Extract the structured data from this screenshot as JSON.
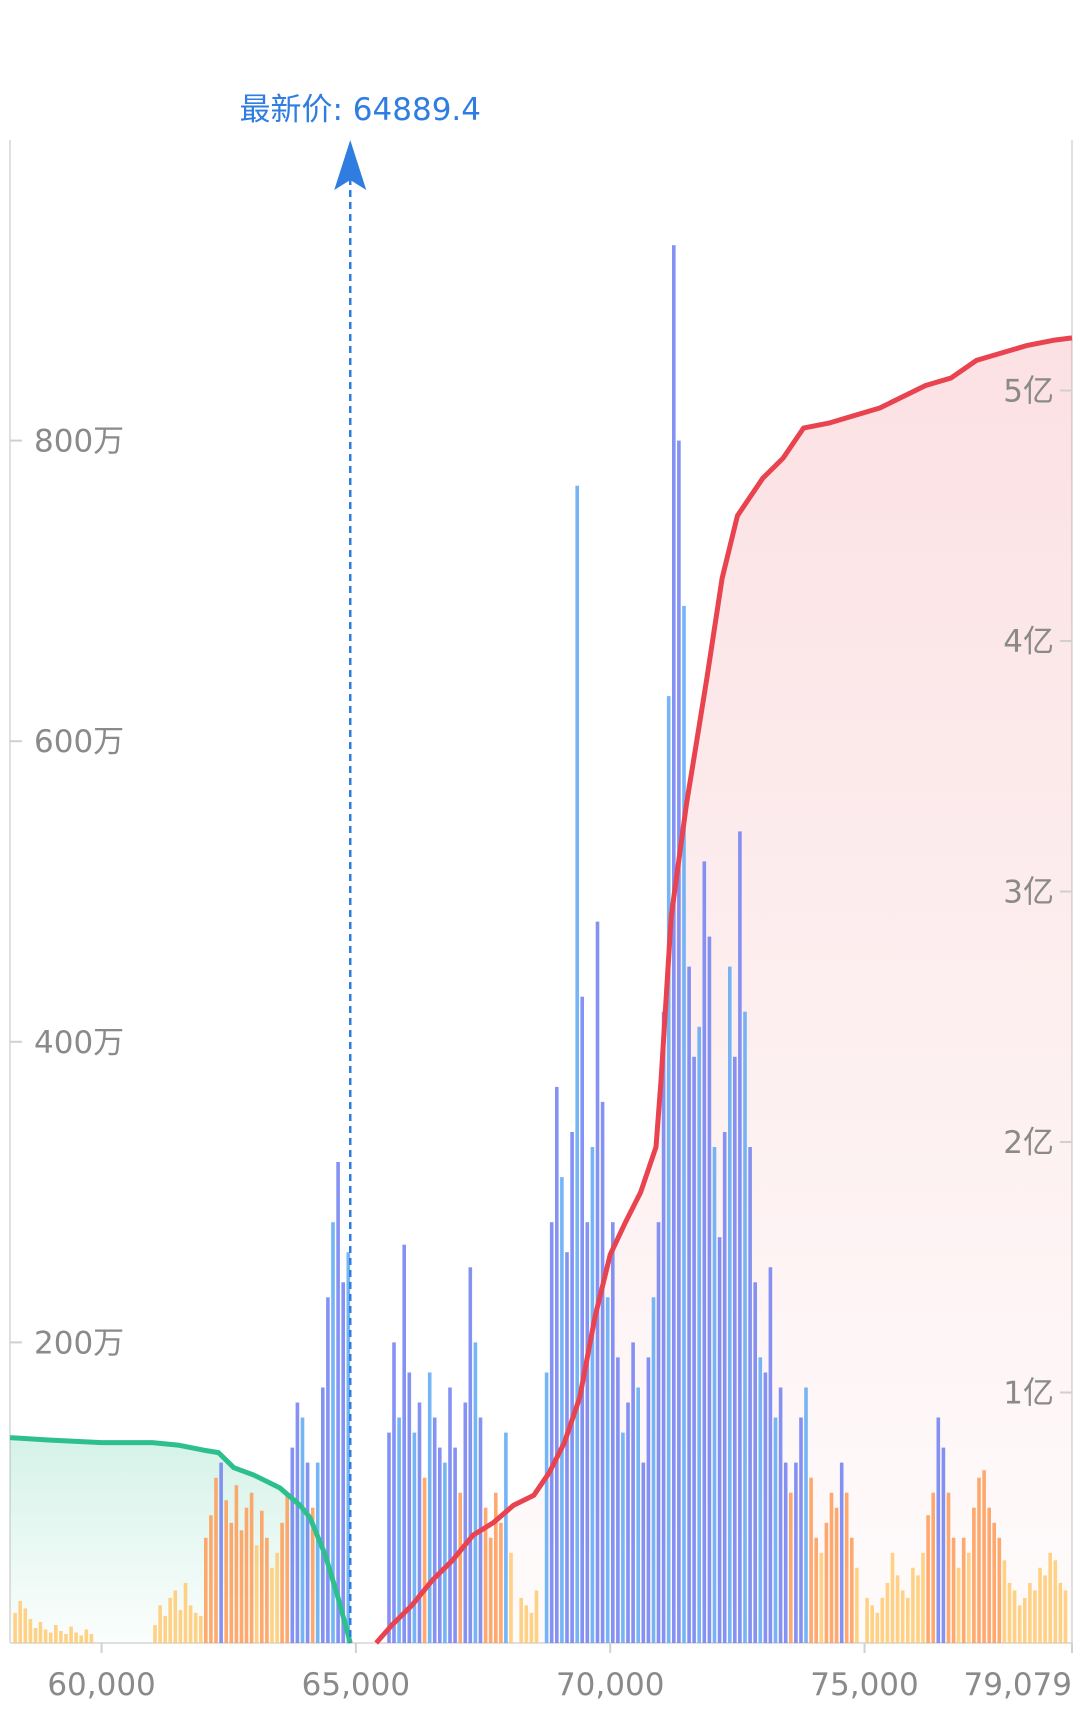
{
  "chart_data": {
    "type": "bar",
    "title": "",
    "last_price": {
      "label": "最新价: 64889.4",
      "value": 64889.4
    },
    "x_axis": {
      "ticks": [
        {
          "value": 60000,
          "label": "60,000"
        },
        {
          "value": 65000,
          "label": "65,000"
        },
        {
          "value": 70000,
          "label": "70,000"
        },
        {
          "value": 75000,
          "label": "75,000"
        },
        {
          "value": 79079,
          "label": "79,079"
        }
      ],
      "range": [
        58200,
        79079
      ]
    },
    "y_left": {
      "ticks": [
        {
          "value": 2000000,
          "label": "200万"
        },
        {
          "value": 4000000,
          "label": "400万"
        },
        {
          "value": 6000000,
          "label": "600万"
        },
        {
          "value": 8000000,
          "label": "800万"
        }
      ],
      "range": [
        0,
        10000000
      ]
    },
    "y_right": {
      "ticks": [
        {
          "value": 100000000,
          "label": "1亿"
        },
        {
          "value": 200000000,
          "label": "2亿"
        },
        {
          "value": 300000000,
          "label": "3亿"
        },
        {
          "value": 400000000,
          "label": "4亿"
        },
        {
          "value": 500000000,
          "label": "5亿"
        }
      ],
      "range": [
        0,
        600000000
      ]
    },
    "grid": false,
    "legend": "none",
    "colors": {
      "low": "#ffc970",
      "mid": "#ff9a55",
      "high": "#6f7ff2",
      "alt": "#5da8f5",
      "cum_bid": "#2ec08c",
      "cum_ask": "#e8434f",
      "price_line": "#2f7de1"
    },
    "bars": [
      {
        "x": 58300,
        "v": 200000
      },
      {
        "x": 58400,
        "v": 280000
      },
      {
        "x": 58500,
        "v": 230000
      },
      {
        "x": 58600,
        "v": 160000
      },
      {
        "x": 58700,
        "v": 100000
      },
      {
        "x": 58800,
        "v": 140000
      },
      {
        "x": 58900,
        "v": 90000
      },
      {
        "x": 59000,
        "v": 70000
      },
      {
        "x": 59100,
        "v": 120000
      },
      {
        "x": 59200,
        "v": 80000
      },
      {
        "x": 59300,
        "v": 60000
      },
      {
        "x": 59400,
        "v": 110000
      },
      {
        "x": 59500,
        "v": 70000
      },
      {
        "x": 59600,
        "v": 50000
      },
      {
        "x": 59700,
        "v": 90000
      },
      {
        "x": 59800,
        "v": 60000
      },
      {
        "x": 61050,
        "v": 120000
      },
      {
        "x": 61150,
        "v": 250000
      },
      {
        "x": 61250,
        "v": 180000
      },
      {
        "x": 61350,
        "v": 300000
      },
      {
        "x": 61450,
        "v": 350000
      },
      {
        "x": 61550,
        "v": 220000
      },
      {
        "x": 61650,
        "v": 400000
      },
      {
        "x": 61750,
        "v": 250000
      },
      {
        "x": 61850,
        "v": 200000
      },
      {
        "x": 61950,
        "v": 180000
      },
      {
        "x": 62050,
        "v": 700000
      },
      {
        "x": 62150,
        "v": 850000
      },
      {
        "x": 62250,
        "v": 1100000
      },
      {
        "x": 62350,
        "v": 1200000
      },
      {
        "x": 62450,
        "v": 950000
      },
      {
        "x": 62550,
        "v": 800000
      },
      {
        "x": 62650,
        "v": 1050000
      },
      {
        "x": 62750,
        "v": 750000
      },
      {
        "x": 62850,
        "v": 900000
      },
      {
        "x": 62950,
        "v": 1000000
      },
      {
        "x": 63050,
        "v": 650000
      },
      {
        "x": 63150,
        "v": 880000
      },
      {
        "x": 63250,
        "v": 700000
      },
      {
        "x": 63350,
        "v": 500000
      },
      {
        "x": 63450,
        "v": 600000
      },
      {
        "x": 63550,
        "v": 800000
      },
      {
        "x": 63650,
        "v": 1000000
      },
      {
        "x": 63750,
        "v": 1300000
      },
      {
        "x": 63850,
        "v": 1600000
      },
      {
        "x": 63950,
        "v": 1500000
      },
      {
        "x": 64050,
        "v": 1200000
      },
      {
        "x": 64150,
        "v": 900000
      },
      {
        "x": 64250,
        "v": 1200000
      },
      {
        "x": 64350,
        "v": 1700000
      },
      {
        "x": 64450,
        "v": 2300000
      },
      {
        "x": 64550,
        "v": 2800000
      },
      {
        "x": 64650,
        "v": 3200000
      },
      {
        "x": 64750,
        "v": 2400000
      },
      {
        "x": 64850,
        "v": 2600000
      },
      {
        "x": 65650,
        "v": 1400000
      },
      {
        "x": 65750,
        "v": 2000000
      },
      {
        "x": 65850,
        "v": 1500000
      },
      {
        "x": 65950,
        "v": 2650000
      },
      {
        "x": 66050,
        "v": 1800000
      },
      {
        "x": 66150,
        "v": 1400000
      },
      {
        "x": 66250,
        "v": 1600000
      },
      {
        "x": 66350,
        "v": 1100000
      },
      {
        "x": 66450,
        "v": 1800000
      },
      {
        "x": 66550,
        "v": 1500000
      },
      {
        "x": 66650,
        "v": 1300000
      },
      {
        "x": 66750,
        "v": 1200000
      },
      {
        "x": 66850,
        "v": 1700000
      },
      {
        "x": 66950,
        "v": 1300000
      },
      {
        "x": 67050,
        "v": 1000000
      },
      {
        "x": 67150,
        "v": 1600000
      },
      {
        "x": 67250,
        "v": 2500000
      },
      {
        "x": 67350,
        "v": 2000000
      },
      {
        "x": 67450,
        "v": 1500000
      },
      {
        "x": 67550,
        "v": 900000
      },
      {
        "x": 67650,
        "v": 700000
      },
      {
        "x": 67750,
        "v": 1000000
      },
      {
        "x": 67850,
        "v": 800000
      },
      {
        "x": 67950,
        "v": 1400000
      },
      {
        "x": 68050,
        "v": 600000
      },
      {
        "x": 68250,
        "v": 300000
      },
      {
        "x": 68350,
        "v": 250000
      },
      {
        "x": 68450,
        "v": 200000
      },
      {
        "x": 68550,
        "v": 350000
      },
      {
        "x": 68750,
        "v": 1800000
      },
      {
        "x": 68850,
        "v": 2800000
      },
      {
        "x": 68950,
        "v": 3700000
      },
      {
        "x": 69050,
        "v": 3100000
      },
      {
        "x": 69150,
        "v": 2600000
      },
      {
        "x": 69250,
        "v": 3400000
      },
      {
        "x": 69350,
        "v": 7700000
      },
      {
        "x": 69450,
        "v": 4300000
      },
      {
        "x": 69550,
        "v": 2800000
      },
      {
        "x": 69650,
        "v": 3300000
      },
      {
        "x": 69750,
        "v": 4800000
      },
      {
        "x": 69850,
        "v": 3600000
      },
      {
        "x": 69950,
        "v": 2300000
      },
      {
        "x": 70050,
        "v": 2800000
      },
      {
        "x": 70150,
        "v": 1900000
      },
      {
        "x": 70250,
        "v": 1400000
      },
      {
        "x": 70350,
        "v": 1600000
      },
      {
        "x": 70450,
        "v": 2000000
      },
      {
        "x": 70550,
        "v": 1700000
      },
      {
        "x": 70650,
        "v": 1200000
      },
      {
        "x": 70750,
        "v": 1900000
      },
      {
        "x": 70850,
        "v": 2300000
      },
      {
        "x": 70950,
        "v": 2800000
      },
      {
        "x": 71050,
        "v": 4200000
      },
      {
        "x": 71150,
        "v": 6300000
      },
      {
        "x": 71250,
        "v": 9300000
      },
      {
        "x": 71350,
        "v": 8000000
      },
      {
        "x": 71450,
        "v": 6900000
      },
      {
        "x": 71550,
        "v": 4500000
      },
      {
        "x": 71650,
        "v": 3900000
      },
      {
        "x": 71750,
        "v": 4100000
      },
      {
        "x": 71850,
        "v": 5200000
      },
      {
        "x": 71950,
        "v": 4700000
      },
      {
        "x": 72050,
        "v": 3300000
      },
      {
        "x": 72150,
        "v": 2700000
      },
      {
        "x": 72250,
        "v": 3400000
      },
      {
        "x": 72350,
        "v": 4500000
      },
      {
        "x": 72450,
        "v": 3900000
      },
      {
        "x": 72550,
        "v": 5400000
      },
      {
        "x": 72650,
        "v": 4200000
      },
      {
        "x": 72750,
        "v": 3300000
      },
      {
        "x": 72850,
        "v": 2400000
      },
      {
        "x": 72950,
        "v": 1900000
      },
      {
        "x": 73050,
        "v": 1800000
      },
      {
        "x": 73150,
        "v": 2500000
      },
      {
        "x": 73250,
        "v": 1500000
      },
      {
        "x": 73350,
        "v": 1700000
      },
      {
        "x": 73450,
        "v": 1200000
      },
      {
        "x": 73550,
        "v": 1000000
      },
      {
        "x": 73650,
        "v": 1200000
      },
      {
        "x": 73750,
        "v": 1500000
      },
      {
        "x": 73850,
        "v": 1700000
      },
      {
        "x": 73950,
        "v": 1100000
      },
      {
        "x": 74050,
        "v": 700000
      },
      {
        "x": 74150,
        "v": 600000
      },
      {
        "x": 74250,
        "v": 800000
      },
      {
        "x": 74350,
        "v": 1000000
      },
      {
        "x": 74450,
        "v": 900000
      },
      {
        "x": 74550,
        "v": 1200000
      },
      {
        "x": 74650,
        "v": 1000000
      },
      {
        "x": 74750,
        "v": 700000
      },
      {
        "x": 74850,
        "v": 500000
      },
      {
        "x": 75050,
        "v": 300000
      },
      {
        "x": 75150,
        "v": 250000
      },
      {
        "x": 75250,
        "v": 200000
      },
      {
        "x": 75350,
        "v": 300000
      },
      {
        "x": 75450,
        "v": 400000
      },
      {
        "x": 75550,
        "v": 600000
      },
      {
        "x": 75650,
        "v": 450000
      },
      {
        "x": 75750,
        "v": 350000
      },
      {
        "x": 75850,
        "v": 300000
      },
      {
        "x": 75950,
        "v": 500000
      },
      {
        "x": 76050,
        "v": 450000
      },
      {
        "x": 76150,
        "v": 600000
      },
      {
        "x": 76250,
        "v": 850000
      },
      {
        "x": 76350,
        "v": 1000000
      },
      {
        "x": 76450,
        "v": 1500000
      },
      {
        "x": 76550,
        "v": 1300000
      },
      {
        "x": 76650,
        "v": 1000000
      },
      {
        "x": 76750,
        "v": 700000
      },
      {
        "x": 76850,
        "v": 500000
      },
      {
        "x": 76950,
        "v": 700000
      },
      {
        "x": 77050,
        "v": 600000
      },
      {
        "x": 77150,
        "v": 900000
      },
      {
        "x": 77250,
        "v": 1100000
      },
      {
        "x": 77350,
        "v": 1150000
      },
      {
        "x": 77450,
        "v": 900000
      },
      {
        "x": 77550,
        "v": 800000
      },
      {
        "x": 77650,
        "v": 700000
      },
      {
        "x": 77750,
        "v": 550000
      },
      {
        "x": 77850,
        "v": 400000
      },
      {
        "x": 77950,
        "v": 350000
      },
      {
        "x": 78050,
        "v": 250000
      },
      {
        "x": 78150,
        "v": 300000
      },
      {
        "x": 78250,
        "v": 400000
      },
      {
        "x": 78350,
        "v": 350000
      },
      {
        "x": 78450,
        "v": 500000
      },
      {
        "x": 78550,
        "v": 450000
      },
      {
        "x": 78650,
        "v": 600000
      },
      {
        "x": 78750,
        "v": 550000
      },
      {
        "x": 78850,
        "v": 400000
      },
      {
        "x": 78950,
        "v": 350000
      }
    ],
    "cum_bid": [
      {
        "x": 58200,
        "y": 82000000
      },
      {
        "x": 59000,
        "y": 81000000
      },
      {
        "x": 60000,
        "y": 80000000
      },
      {
        "x": 61000,
        "y": 80000000
      },
      {
        "x": 61500,
        "y": 79000000
      },
      {
        "x": 62000,
        "y": 77000000
      },
      {
        "x": 62300,
        "y": 76000000
      },
      {
        "x": 62600,
        "y": 70000000
      },
      {
        "x": 63000,
        "y": 67000000
      },
      {
        "x": 63500,
        "y": 62000000
      },
      {
        "x": 63900,
        "y": 55000000
      },
      {
        "x": 64100,
        "y": 50000000
      },
      {
        "x": 64400,
        "y": 35000000
      },
      {
        "x": 64650,
        "y": 18000000
      },
      {
        "x": 64889.4,
        "y": 0
      }
    ],
    "cum_ask": [
      {
        "x": 65400,
        "y": 0
      },
      {
        "x": 65700,
        "y": 7000000
      },
      {
        "x": 66100,
        "y": 15000000
      },
      {
        "x": 66500,
        "y": 25000000
      },
      {
        "x": 66900,
        "y": 33000000
      },
      {
        "x": 67300,
        "y": 43000000
      },
      {
        "x": 67700,
        "y": 48000000
      },
      {
        "x": 68100,
        "y": 55000000
      },
      {
        "x": 68500,
        "y": 59000000
      },
      {
        "x": 68800,
        "y": 68000000
      },
      {
        "x": 69100,
        "y": 80000000
      },
      {
        "x": 69400,
        "y": 98000000
      },
      {
        "x": 69700,
        "y": 130000000
      },
      {
        "x": 70000,
        "y": 155000000
      },
      {
        "x": 70300,
        "y": 168000000
      },
      {
        "x": 70600,
        "y": 180000000
      },
      {
        "x": 70900,
        "y": 198000000
      },
      {
        "x": 71000,
        "y": 225000000
      },
      {
        "x": 71200,
        "y": 290000000
      },
      {
        "x": 71500,
        "y": 335000000
      },
      {
        "x": 71700,
        "y": 360000000
      },
      {
        "x": 71900,
        "y": 385000000
      },
      {
        "x": 72200,
        "y": 425000000
      },
      {
        "x": 72500,
        "y": 450000000
      },
      {
        "x": 73000,
        "y": 465000000
      },
      {
        "x": 73400,
        "y": 473000000
      },
      {
        "x": 73800,
        "y": 485000000
      },
      {
        "x": 74300,
        "y": 487000000
      },
      {
        "x": 74800,
        "y": 490000000
      },
      {
        "x": 75300,
        "y": 493000000
      },
      {
        "x": 75800,
        "y": 498000000
      },
      {
        "x": 76200,
        "y": 502000000
      },
      {
        "x": 76700,
        "y": 505000000
      },
      {
        "x": 77200,
        "y": 512000000
      },
      {
        "x": 77700,
        "y": 515000000
      },
      {
        "x": 78200,
        "y": 518000000
      },
      {
        "x": 78700,
        "y": 520000000
      },
      {
        "x": 79079,
        "y": 521000000
      }
    ]
  }
}
